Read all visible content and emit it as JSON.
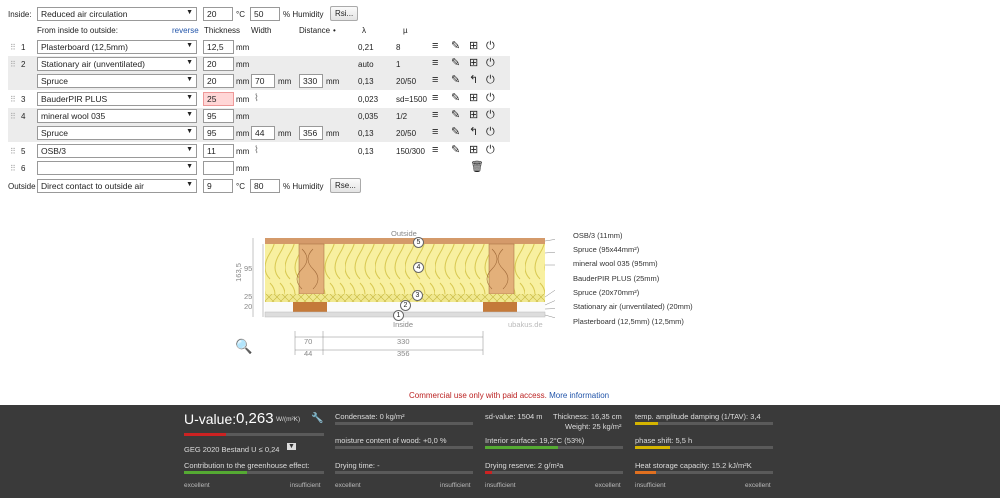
{
  "inside": {
    "label": "Inside:",
    "select": "Reduced air circulation",
    "temp": "20",
    "temp_unit": "°C",
    "humidity": "50",
    "humidity_unit": "% Humidity",
    "button": "Rsi..."
  },
  "outside": {
    "label": "Outside",
    "select": "Direct contact to outside air",
    "temp": "9",
    "temp_unit": "°C",
    "humidity": "80",
    "humidity_unit": "% Humidity",
    "button": "Rse..."
  },
  "header": {
    "from_inside": "From inside to outside:",
    "reverse": "reverse",
    "thickness": "Thickness",
    "width": "Width",
    "distance": "Distance",
    "distance_sort": "•",
    "lambda": "λ",
    "mu": "µ"
  },
  "layers": [
    {
      "num": "1",
      "material": "Plasterboard (12,5mm)",
      "thickness": "12,5",
      "unit": "mm",
      "lambda": "0,21",
      "mu": "8"
    },
    {
      "num": "2",
      "material": "Stationary air (unventilated)",
      "thickness": "20",
      "unit": "mm",
      "lambda": "auto",
      "mu": "1",
      "sub": {
        "material": "Spruce",
        "thickness": "20",
        "width": "70",
        "distance": "330",
        "lambda": "0,13",
        "mu": "20/50"
      }
    },
    {
      "num": "3",
      "material": "BauderPIR PLUS",
      "thickness": "25",
      "unit": "mm",
      "lambda": "0,023",
      "mu": "sd=1500"
    },
    {
      "num": "4",
      "material": "mineral wool 035",
      "thickness": "95",
      "unit": "mm",
      "lambda": "0,035",
      "mu": "1/2",
      "sub": {
        "material": "Spruce",
        "thickness": "95",
        "width": "44",
        "distance": "356",
        "lambda": "0,13",
        "mu": "20/50"
      }
    },
    {
      "num": "5",
      "material": "OSB/3",
      "thickness": "11",
      "unit": "mm",
      "lambda": "0,13",
      "mu": "150/300"
    },
    {
      "num": "6",
      "material": "",
      "thickness": "",
      "unit": "mm",
      "lambda": "",
      "mu": ""
    }
  ],
  "diagram": {
    "outside": "Outside",
    "inside": "Inside",
    "watermark": "ubakus.de",
    "dims": {
      "total": "163,5",
      "d95": "95",
      "d25": "25",
      "d20": "20",
      "w70": "70",
      "w330": "330",
      "w44": "44",
      "w356": "356"
    },
    "markers": [
      "1",
      "2",
      "3",
      "4",
      "5"
    ],
    "labels": [
      "OSB/3 (11mm)",
      "Spruce (95x44mm²)",
      "mineral wool 035 (95mm)",
      "BauderPIR PLUS (25mm)",
      "Spruce (20x70mm²)",
      "Stationary air (unventilated) (20mm)",
      "Plasterboard (12,5mm) (12,5mm)"
    ]
  },
  "notice": {
    "text": "Commercial use only with paid access.",
    "link": "More information"
  },
  "results": {
    "uvalue_label": "U-value:",
    "uvalue": "0,263",
    "uvalue_unit": "W/(m²K)",
    "uvalue_fill": 0.3,
    "geg": "GEG 2020 Bestand U ≤ 0,24",
    "greenhouse": "Contribution to the greenhouse effect:",
    "greenhouse_fill": 0.45,
    "condensate": "Condensate: 0 kg/m²",
    "condensate_fill": 0.0,
    "moisture": "moisture content of wood: +0,0 %",
    "moisture_fill": 0.0,
    "drying": "Drying time: -",
    "drying_fill": 0.0,
    "sd": "sd-value: 1504 m",
    "thickness": "Thickness: 16,35 cm",
    "weight": "Weight: 25 kg/m²",
    "surface": "Interior surface: 19,2°C (53%)",
    "surface_fill": 0.53,
    "reserve": "Drying reserve: 2 g/m²a",
    "reserve_fill": 0.05,
    "amplitude": "temp. amplitude damping (1/TAV): 3,4",
    "amplitude_fill": 0.17,
    "phase": "phase shift: 5,5 h",
    "phase_fill": 0.25,
    "heat": "Heat storage capacity: 15.2 kJ/m²K",
    "heat_fill": 0.15,
    "excellent": "excellent",
    "insufficient": "insufficient",
    "colors": {
      "red": "#cc2222",
      "green": "#55aa33",
      "yellow": "#d4b400",
      "orange": "#e07020"
    }
  }
}
